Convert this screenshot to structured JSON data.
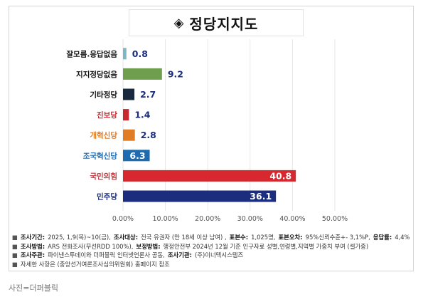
{
  "title": "정당지지도",
  "title_marker": "◈",
  "chart_data": {
    "type": "bar",
    "orientation": "horizontal",
    "categories": [
      "잘모름.응답없음",
      "지지정당없음",
      "기타정당",
      "진보당",
      "개혁신당",
      "조국혁신당",
      "국민의힘",
      "민주당"
    ],
    "values": [
      0.8,
      9.2,
      2.7,
      1.4,
      2.8,
      6.3,
      40.8,
      36.1
    ],
    "value_labels": [
      "0.8",
      "9.2",
      "2.7",
      "1.4",
      "2.8",
      "6.3",
      "40.8",
      "36.1"
    ],
    "colors": [
      "#7fb6c3",
      "#6f9f4e",
      "#1a2a3e",
      "#c8282e",
      "#e07c26",
      "#1f6bb0",
      "#d8282f",
      "#1b2d7d"
    ],
    "label_colors": [
      "#1b2d7d",
      "#1b2d7d",
      "#1b2d7d",
      "#1b2d7d",
      "#1b2d7d",
      "#ffffff",
      "#ffffff",
      "#ffffff"
    ],
    "label_inside": [
      false,
      false,
      false,
      false,
      false,
      true,
      true,
      true
    ],
    "xlim": [
      0,
      50
    ],
    "xticks": [
      0,
      10,
      20,
      30,
      40,
      50
    ],
    "xtick_labels": [
      "0.00%",
      "10.00%",
      "20.00%",
      "30.00%",
      "40.00%",
      "50.00%"
    ],
    "grid": true,
    "legend": "none"
  },
  "notes": [
    {
      "bullet": "■",
      "parts": [
        {
          "k": "조사기간:",
          "v": "2025, 1,9(목)~10(금),"
        },
        {
          "k": "조사대상:",
          "v": "전국 유권자 (만 18세 이상 남여) ,"
        },
        {
          "k": "표본수:",
          "v": "1,025명,"
        },
        {
          "k": "표본오차:",
          "v": "95%신뢰수준+- 3,1%P,"
        },
        {
          "k": "응답률:",
          "v": "4,4%"
        }
      ]
    },
    {
      "bullet": "■",
      "parts": [
        {
          "k": "조사방법:",
          "v": "ARS 전화조사(무선RDD 100%),"
        },
        {
          "k": "보정방법:",
          "v": "행정안전부 2024년 12월 기준 인구자료 성별,연령별,지역별 가중치 부여 (셀가중)"
        }
      ]
    },
    {
      "bullet": "■",
      "parts": [
        {
          "k": "조사주관:",
          "v": "파이낸스투데이와 더퍼블릭 인터넷언론사 공동,"
        },
        {
          "k": "조사기관:",
          "v": "(주)이너텍시스템즈"
        }
      ]
    },
    {
      "bullet": "■",
      "parts": [
        {
          "k": "",
          "v": "자세한 사항은 (중앙선거여론조사심의위원회) 홈페이지 참조"
        }
      ]
    }
  ],
  "caption": "사진=더퍼블릭"
}
